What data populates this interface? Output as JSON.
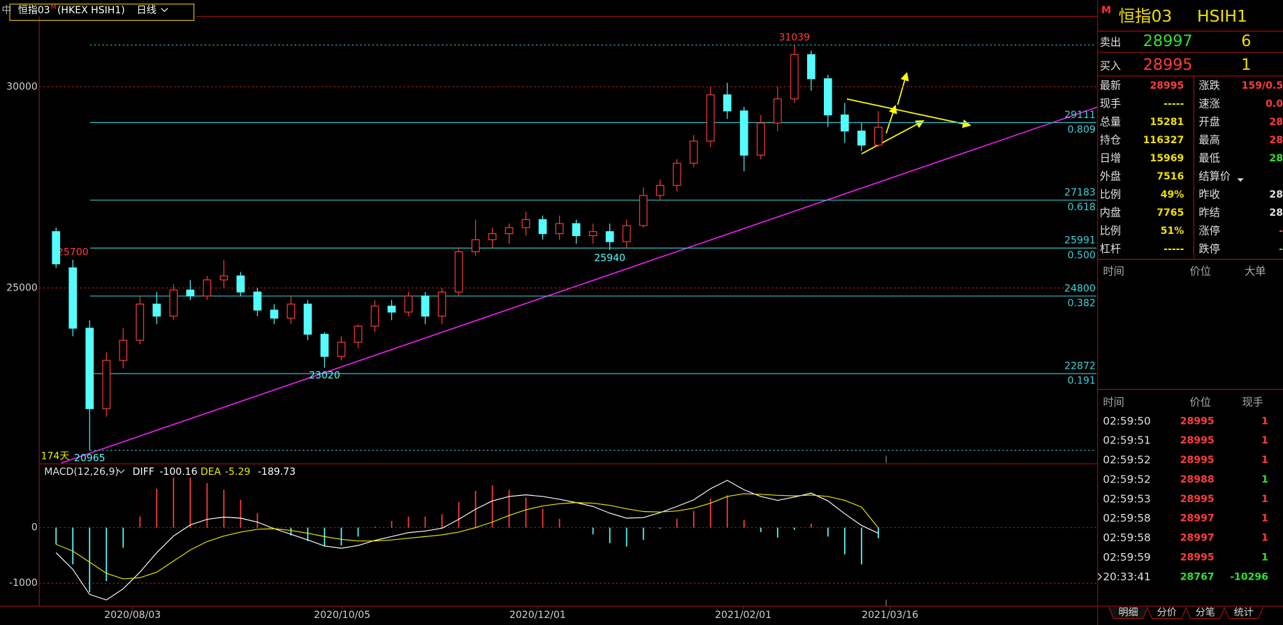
{
  "header": {
    "market": "中",
    "name": "恒指03",
    "flag": "M",
    "code": "(HKEX HSIH1)",
    "period": "日线"
  },
  "chart_data": [
    {
      "type": "candlestick",
      "open": [
        26400,
        25500,
        24000,
        22000,
        23200,
        23700,
        24600,
        24300,
        24950,
        24800,
        25200,
        25300,
        24900,
        24450,
        24250,
        24600,
        23850,
        23300,
        23650,
        24050,
        24550,
        24400,
        24800,
        24300,
        24900,
        25900,
        26200,
        26350,
        26500,
        26700,
        26350,
        26600,
        26300,
        26400,
        26150,
        26550,
        27300,
        27550,
        28100,
        28650,
        29800,
        29400,
        28300,
        29100,
        29700,
        30800,
        30200,
        29300,
        28900,
        28550
      ],
      "high": [
        26500,
        25700,
        24200,
        23400,
        24000,
        24800,
        24900,
        25100,
        25200,
        25300,
        25700,
        25400,
        25000,
        24600,
        24800,
        24700,
        23900,
        23800,
        24100,
        24700,
        24700,
        24900,
        24900,
        25000,
        26000,
        26700,
        26500,
        26600,
        26900,
        26800,
        26800,
        26700,
        26600,
        26600,
        26700,
        27500,
        27700,
        28200,
        28800,
        30000,
        30100,
        29500,
        29300,
        30000,
        31039,
        30900,
        30300,
        29600,
        29100,
        29400
      ],
      "low": [
        25500,
        23800,
        20965,
        21800,
        23000,
        23600,
        24100,
        24200,
        24700,
        24700,
        25000,
        24800,
        24300,
        24100,
        24100,
        23700,
        23020,
        23200,
        23500,
        23900,
        24200,
        24300,
        24100,
        24100,
        24800,
        25800,
        26000,
        26100,
        26300,
        26200,
        26200,
        26100,
        26100,
        25940,
        26000,
        26500,
        27200,
        27400,
        28000,
        28500,
        29200,
        27900,
        28200,
        28900,
        29600,
        29900,
        29000,
        28600,
        28400,
        28500
      ],
      "close": [
        25600,
        24000,
        22000,
        23200,
        23700,
        24600,
        24300,
        24950,
        24800,
        25200,
        25300,
        24900,
        24450,
        24250,
        24600,
        23850,
        23300,
        23650,
        24050,
        24550,
        24400,
        24800,
        24300,
        24900,
        25900,
        26200,
        26350,
        26500,
        26700,
        26350,
        26600,
        26300,
        26400,
        26150,
        26550,
        27300,
        27550,
        28100,
        28650,
        29800,
        29400,
        28300,
        29100,
        29700,
        30800,
        30200,
        29300,
        28900,
        28550,
        28995
      ],
      "up_color": "#ff3c3c",
      "down_color": "#54fcfc",
      "xlim": [
        -1,
        62
      ],
      "xticks": [
        {
          "value": 4.56,
          "label": "2020/08/03"
        },
        {
          "value": 17.05,
          "label": "2020/10/05"
        },
        {
          "value": 28.7,
          "label": "2020/12/01"
        },
        {
          "value": 40.95,
          "label": "2021/02/01"
        },
        {
          "value": 49.7,
          "label": "2021/03/16"
        }
      ],
      "ylim": [
        20670,
        31750
      ],
      "yticks": [
        30000,
        25000
      ],
      "grid": true,
      "fib": [
        {
          "value": 29111,
          "ratio": "0.809"
        },
        {
          "value": 27183,
          "ratio": "0.618"
        },
        {
          "value": 25991,
          "ratio": "0.500"
        },
        {
          "value": 24800,
          "ratio": "0.382"
        },
        {
          "value": 22872,
          "ratio": "0.191"
        }
      ],
      "high_labels": [
        31039,
        25700
      ],
      "low_labels": [
        25940,
        23020,
        20965
      ],
      "span_label": "174天"
    },
    {
      "type": "macd",
      "title": "MACD(12,26,9)",
      "series": [
        {
          "name": "DIFF",
          "color": "#ffffff",
          "values": [
            -450,
            -750,
            -1200,
            -1300,
            -1100,
            -800,
            -450,
            -150,
            50,
            150,
            190,
            170,
            100,
            -20,
            -120,
            -220,
            -330,
            -370,
            -320,
            -230,
            -160,
            -90,
            -60,
            -10,
            150,
            330,
            480,
            560,
            590,
            560,
            510,
            450,
            380,
            260,
            170,
            180,
            270,
            380,
            500,
            700,
            850,
            680,
            560,
            490,
            550,
            620,
            480,
            250,
            40,
            -100.16
          ]
        },
        {
          "name": "DEA",
          "color": "#e8e800",
          "values": [
            -300,
            -420,
            -620,
            -820,
            -920,
            -900,
            -800,
            -600,
            -400,
            -250,
            -150,
            -80,
            -30,
            -20,
            -50,
            -100,
            -160,
            -210,
            -240,
            -240,
            -220,
            -190,
            -160,
            -130,
            -80,
            0,
            100,
            220,
            320,
            390,
            430,
            450,
            440,
            400,
            340,
            290,
            280,
            300,
            350,
            440,
            560,
            610,
            600,
            580,
            570,
            585,
            560,
            490,
            370,
            -5.29
          ]
        }
      ],
      "histogram": [
        -300,
        -660,
        -1160,
        -960,
        -360,
        200,
        700,
        900,
        900,
        800,
        680,
        500,
        260,
        0,
        -140,
        -240,
        -340,
        -320,
        -160,
        20,
        120,
        200,
        200,
        240,
        460,
        660,
        760,
        680,
        540,
        340,
        160,
        0,
        -120,
        -280,
        -340,
        -220,
        -20,
        160,
        300,
        520,
        580,
        140,
        -80,
        -180,
        -40,
        70,
        -160,
        -480,
        -660,
        -189.73
      ],
      "xlim": [
        -1,
        62
      ],
      "ylim": [
        -1397,
        1132
      ],
      "yticks": [
        0,
        -1000
      ],
      "grid": true
    }
  ],
  "panel": {
    "title": {
      "flag": "M",
      "name": "恒指03",
      "code": "HSIH1"
    },
    "sell": {
      "label": "卖出",
      "price": 28997,
      "qty": 6
    },
    "buy": {
      "label": "买入",
      "price": 28995,
      "qty": 1
    },
    "quote": [
      [
        "最新",
        28995,
        "涨跌",
        "159/0.5"
      ],
      [
        "现手",
        "-----",
        "速涨",
        "0.0"
      ],
      [
        "总量",
        15281,
        "开盘",
        28
      ],
      [
        "持仓",
        116327,
        "最高",
        28
      ],
      [
        "日增",
        15969,
        "最低",
        28
      ],
      [
        "外盘",
        7516,
        "结算价"
      ],
      [
        "比例",
        "49%",
        "昨收",
        28
      ],
      [
        "内盘",
        7765,
        "昨结",
        28
      ],
      [
        "比例",
        "51%",
        "涨停",
        "-"
      ],
      [
        "杠杆",
        "-----",
        "跌停",
        "-"
      ]
    ],
    "bigorder_header": [
      "时间",
      "价位",
      "大单"
    ],
    "ticks_header": [
      "时间",
      "价位",
      "现手"
    ],
    "ticks": [
      [
        "02:59:50",
        28995,
        1
      ],
      [
        "02:59:51",
        28995,
        1
      ],
      [
        "02:59:52",
        28995,
        1
      ],
      [
        "02:59:52",
        28988,
        1
      ],
      [
        "02:59:53",
        28995,
        1
      ],
      [
        "02:59:58",
        28997,
        1
      ],
      [
        "02:59:58",
        28997,
        1
      ],
      [
        "02:59:59",
        28995,
        1
      ],
      [
        "20:33:41",
        28767,
        -10296
      ]
    ],
    "tabs": [
      "明细",
      "分价",
      "分笔",
      "统计"
    ]
  }
}
